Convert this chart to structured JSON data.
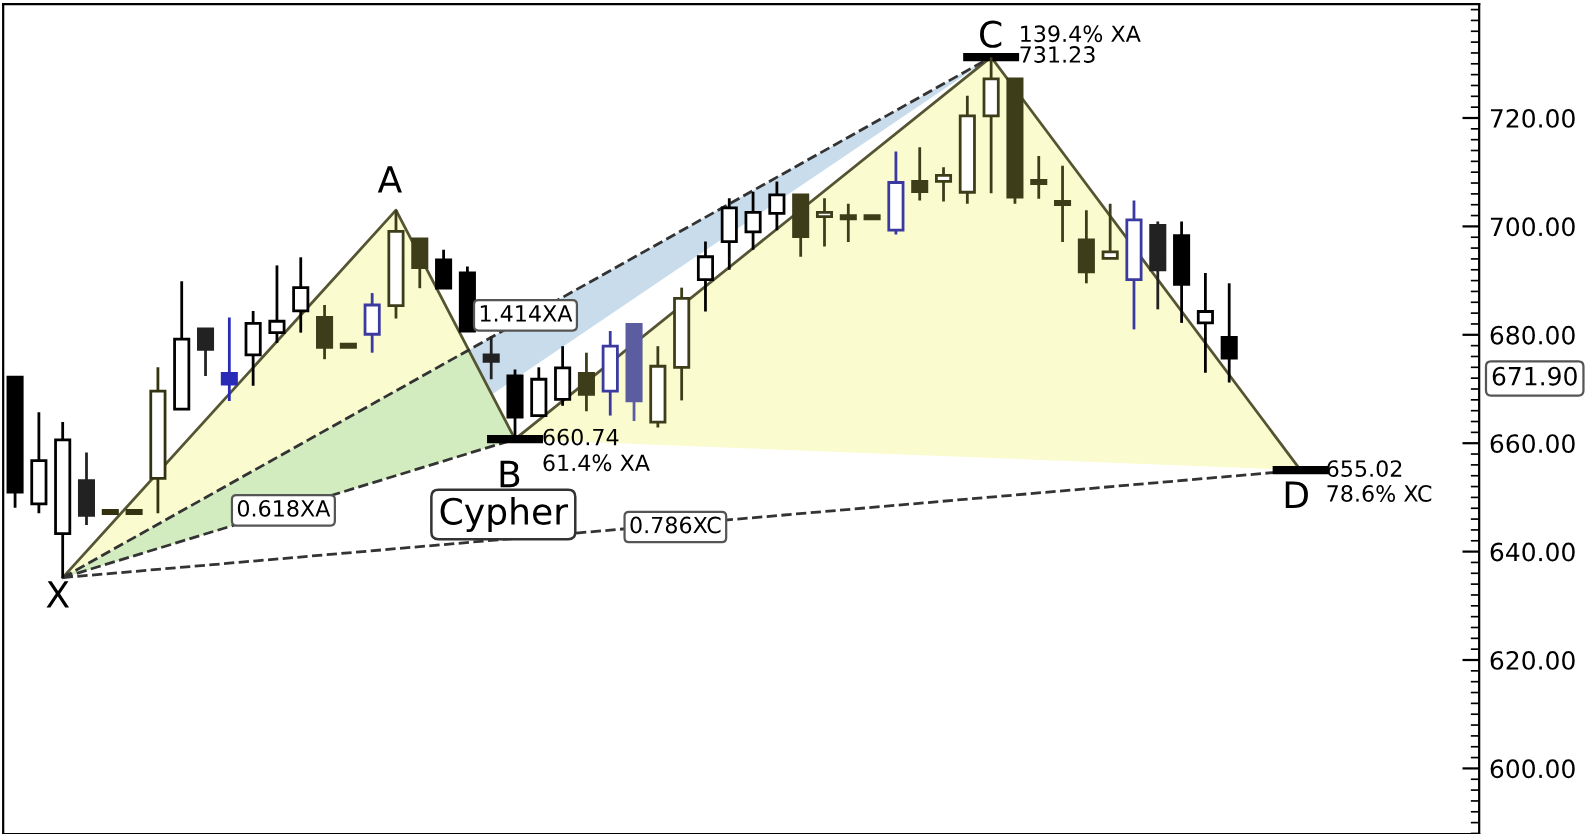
{
  "chart_data": {
    "type": "candlestick",
    "categories": [
      null,
      null,
      null,
      null,
      null,
      null,
      null,
      null,
      null,
      null,
      null,
      null,
      null,
      null,
      null,
      null,
      null,
      null,
      null,
      null,
      null,
      null,
      null,
      null,
      null,
      null,
      null,
      null,
      null,
      null,
      null,
      null,
      null,
      null,
      null,
      null,
      null,
      null,
      null,
      null,
      null,
      null,
      null,
      null,
      null,
      null,
      null,
      null,
      null,
      null,
      null,
      null,
      null,
      null,
      null,
      null,
      null,
      null,
      null,
      null,
      null,
      null
    ],
    "ohlc": [
      [
        672.2,
        672.2,
        648.1,
        651.0
      ],
      [
        648.8,
        665.7,
        647.1,
        656.8
      ],
      [
        643.3,
        663.9,
        635.2,
        660.6
      ],
      [
        653.1,
        658.3,
        644.9,
        646.7
      ],
      [
        647.0,
        647.0,
        647.0,
        647.0
      ],
      [
        647.0,
        647.0,
        647.0,
        647.0
      ],
      [
        653.5,
        674.0,
        647.1,
        669.6
      ],
      [
        666.3,
        689.9,
        666.3,
        679.2
      ],
      [
        681.1,
        681.1,
        672.4,
        677.3
      ],
      [
        672.9,
        683.2,
        667.8,
        670.9
      ],
      [
        676.3,
        684.4,
        670.6,
        682.1
      ],
      [
        680.4,
        692.8,
        678.5,
        682.5
      ],
      [
        684.4,
        694.3,
        680.4,
        688.7
      ],
      [
        683.2,
        685.5,
        675.5,
        677.7
      ],
      [
        677.7,
        677.7,
        677.7,
        677.7
      ],
      [
        680.1,
        687.7,
        676.7,
        685.5
      ],
      [
        685.4,
        703.0,
        683.0,
        699.1
      ],
      [
        697.7,
        697.7,
        688.6,
        692.4
      ],
      [
        693.8,
        695.7,
        688.6,
        688.6
      ],
      [
        691.4,
        692.6,
        680.7,
        680.7
      ],
      [
        676.3,
        679.7,
        671.8,
        675.1
      ],
      [
        672.4,
        673.6,
        660.74,
        664.8
      ],
      [
        665.1,
        674.0,
        665.1,
        671.8
      ],
      [
        668.1,
        677.9,
        666.9,
        673.9
      ],
      [
        672.9,
        676.7,
        665.9,
        669.0
      ],
      [
        669.6,
        680.7,
        665.1,
        677.9
      ],
      [
        681.9,
        681.9,
        664.1,
        667.8
      ],
      [
        663.9,
        677.9,
        662.9,
        674.2
      ],
      [
        674.0,
        688.7,
        667.9,
        686.7
      ],
      [
        690.2,
        697.2,
        684.3,
        694.4
      ],
      [
        697.2,
        705.2,
        692.0,
        703.4
      ],
      [
        699.0,
        706.4,
        695.7,
        702.6
      ],
      [
        702.4,
        708.3,
        699.3,
        705.8
      ],
      [
        705.8,
        705.8,
        694.4,
        698.1
      ],
      [
        701.8,
        705.2,
        696.3,
        702.6
      ],
      [
        701.4,
        704.2,
        697.1,
        701.4
      ],
      [
        701.4,
        701.4,
        701.4,
        701.4
      ],
      [
        699.3,
        713.8,
        698.5,
        708.1
      ],
      [
        708.3,
        714.6,
        704.8,
        706.4
      ],
      [
        708.3,
        710.9,
        704.6,
        709.4
      ],
      [
        706.3,
        724.1,
        704.2,
        720.4
      ],
      [
        720.4,
        731.23,
        706.1,
        727.2
      ],
      [
        727.2,
        727.2,
        704.2,
        705.4
      ],
      [
        707.9,
        713.0,
        705.1,
        707.9
      ],
      [
        704.0,
        711.2,
        697.1,
        704.0
      ],
      [
        697.5,
        703.0,
        689.5,
        691.6
      ],
      [
        694.1,
        704.2,
        694.1,
        695.3
      ],
      [
        690.2,
        704.8,
        681.0,
        701.2
      ],
      [
        700.2,
        700.9,
        684.7,
        692.0
      ],
      [
        698.3,
        700.9,
        682.2,
        689.3
      ],
      [
        682.2,
        691.4,
        673.0,
        684.3
      ],
      [
        679.5,
        689.5,
        671.2,
        675.7
      ],
      null,
      null,
      null,
      null,
      null,
      null,
      null,
      null,
      null,
      null
    ],
    "colors": [
      "#000000",
      "#000000",
      "#000000",
      "#222222",
      "#333311",
      "#333311",
      "#333311",
      "#000000",
      "#222222",
      "#2a2ab8",
      "#000000",
      "#000000",
      "#000000",
      "#3d3d1a",
      "#3d3d1a",
      "#3a3aa0",
      "#3d3d1a",
      "#3d3d1a",
      "#000000",
      "#000000",
      "#222222",
      "#000000",
      "#000000",
      "#000000",
      "#3d3d1a",
      "#3a3aa0",
      "#5c5ca0",
      "#3d3d1a",
      "#3d3d1a",
      "#000000",
      "#000000",
      "#000000",
      "#000000",
      "#3d3d1a",
      "#3d3d1a",
      "#3d3d1a",
      "#3d3d1a",
      "#3a3aa0",
      "#3d3d1a",
      "#3d3d1a",
      "#3d3d1a",
      "#3d3d1a",
      "#3d3d1a",
      "#3d3d1a",
      "#3d3d1a",
      "#3d3d1a",
      "#3d3d1a",
      "#3a3aa0",
      "#222222",
      "#000000",
      "#000000",
      "#000000",
      null,
      null,
      null,
      null,
      null,
      null,
      null,
      null,
      null,
      null
    ],
    "series": [
      {
        "type": "line",
        "values": [
          null,
          null,
          635.2,
          null,
          null,
          null,
          null,
          null,
          null,
          null,
          null,
          null,
          null,
          null,
          null,
          null,
          703.0,
          null,
          null,
          null,
          null,
          660.74,
          null,
          null,
          null,
          null,
          null,
          null,
          null,
          null,
          null,
          null,
          null,
          null,
          null,
          null,
          null,
          null,
          null,
          null,
          null,
          731.23,
          null,
          null,
          null,
          null,
          null,
          null,
          null,
          null,
          null,
          null,
          null,
          null,
          655.02,
          null,
          null,
          null,
          null,
          null,
          null,
          null
        ],
        "color": "#555533",
        "line_style": "solid"
      },
      {
        "type": "line",
        "values": [
          null,
          null,
          635.2,
          null,
          null,
          null,
          null,
          null,
          null,
          null,
          null,
          null,
          null,
          null,
          null,
          null,
          null,
          null,
          null,
          null,
          null,
          660.74,
          null,
          null,
          null,
          null,
          null,
          null,
          null,
          null,
          null,
          null,
          null,
          null,
          null,
          null,
          null,
          null,
          null,
          null,
          null,
          null,
          null,
          null,
          null,
          null,
          null,
          null,
          null,
          null,
          null,
          null,
          null,
          null,
          null,
          null,
          null,
          null,
          null,
          null,
          null,
          null
        ],
        "color": "#333333",
        "line_style": "dashed"
      },
      {
        "type": "line",
        "values": [
          null,
          null,
          635.2,
          null,
          null,
          null,
          null,
          null,
          null,
          null,
          null,
          null,
          null,
          null,
          null,
          null,
          null,
          null,
          null,
          null,
          null,
          null,
          null,
          null,
          null,
          null,
          null,
          null,
          null,
          null,
          null,
          null,
          null,
          null,
          null,
          null,
          null,
          null,
          null,
          null,
          null,
          731.23,
          null,
          null,
          null,
          null,
          null,
          null,
          null,
          null,
          null,
          null,
          null,
          null,
          null,
          null,
          null,
          null,
          null,
          null,
          null,
          null
        ],
        "color": "#333333",
        "line_style": "dashed"
      },
      {
        "type": "line",
        "values": [
          null,
          null,
          635.2,
          null,
          null,
          null,
          null,
          null,
          null,
          null,
          null,
          null,
          null,
          null,
          null,
          null,
          null,
          null,
          null,
          null,
          null,
          null,
          null,
          null,
          null,
          null,
          null,
          null,
          null,
          null,
          null,
          null,
          null,
          null,
          null,
          null,
          null,
          null,
          null,
          null,
          null,
          null,
          null,
          null,
          null,
          null,
          null,
          null,
          null,
          null,
          null,
          null,
          null,
          null,
          655.02,
          null,
          null,
          null,
          null,
          null,
          null,
          null
        ],
        "color": "#333333",
        "line_style": "dashed"
      }
    ],
    "ylim": [
      587.9,
      741
    ],
    "yticks": [
      {
        "value": 600,
        "label": "600.00"
      },
      {
        "value": 620,
        "label": "620.00"
      },
      {
        "value": 640,
        "label": "640.00"
      },
      {
        "value": 660,
        "label": "660.00"
      },
      {
        "value": 680,
        "label": "680.00"
      },
      {
        "value": 700,
        "label": "700.00"
      },
      {
        "value": 720,
        "label": "720.00"
      }
    ],
    "grid": false,
    "marker": "none",
    "annotations": [
      "X",
      "A",
      "B",
      "660.74",
      "61.4% XA",
      "C",
      "139.4% XA",
      "731.23",
      "D",
      "655.02",
      "78.6% XC",
      "0.618XA",
      "1.414XA",
      "0.786XC",
      "Cypher",
      "671.90"
    ]
  }
}
